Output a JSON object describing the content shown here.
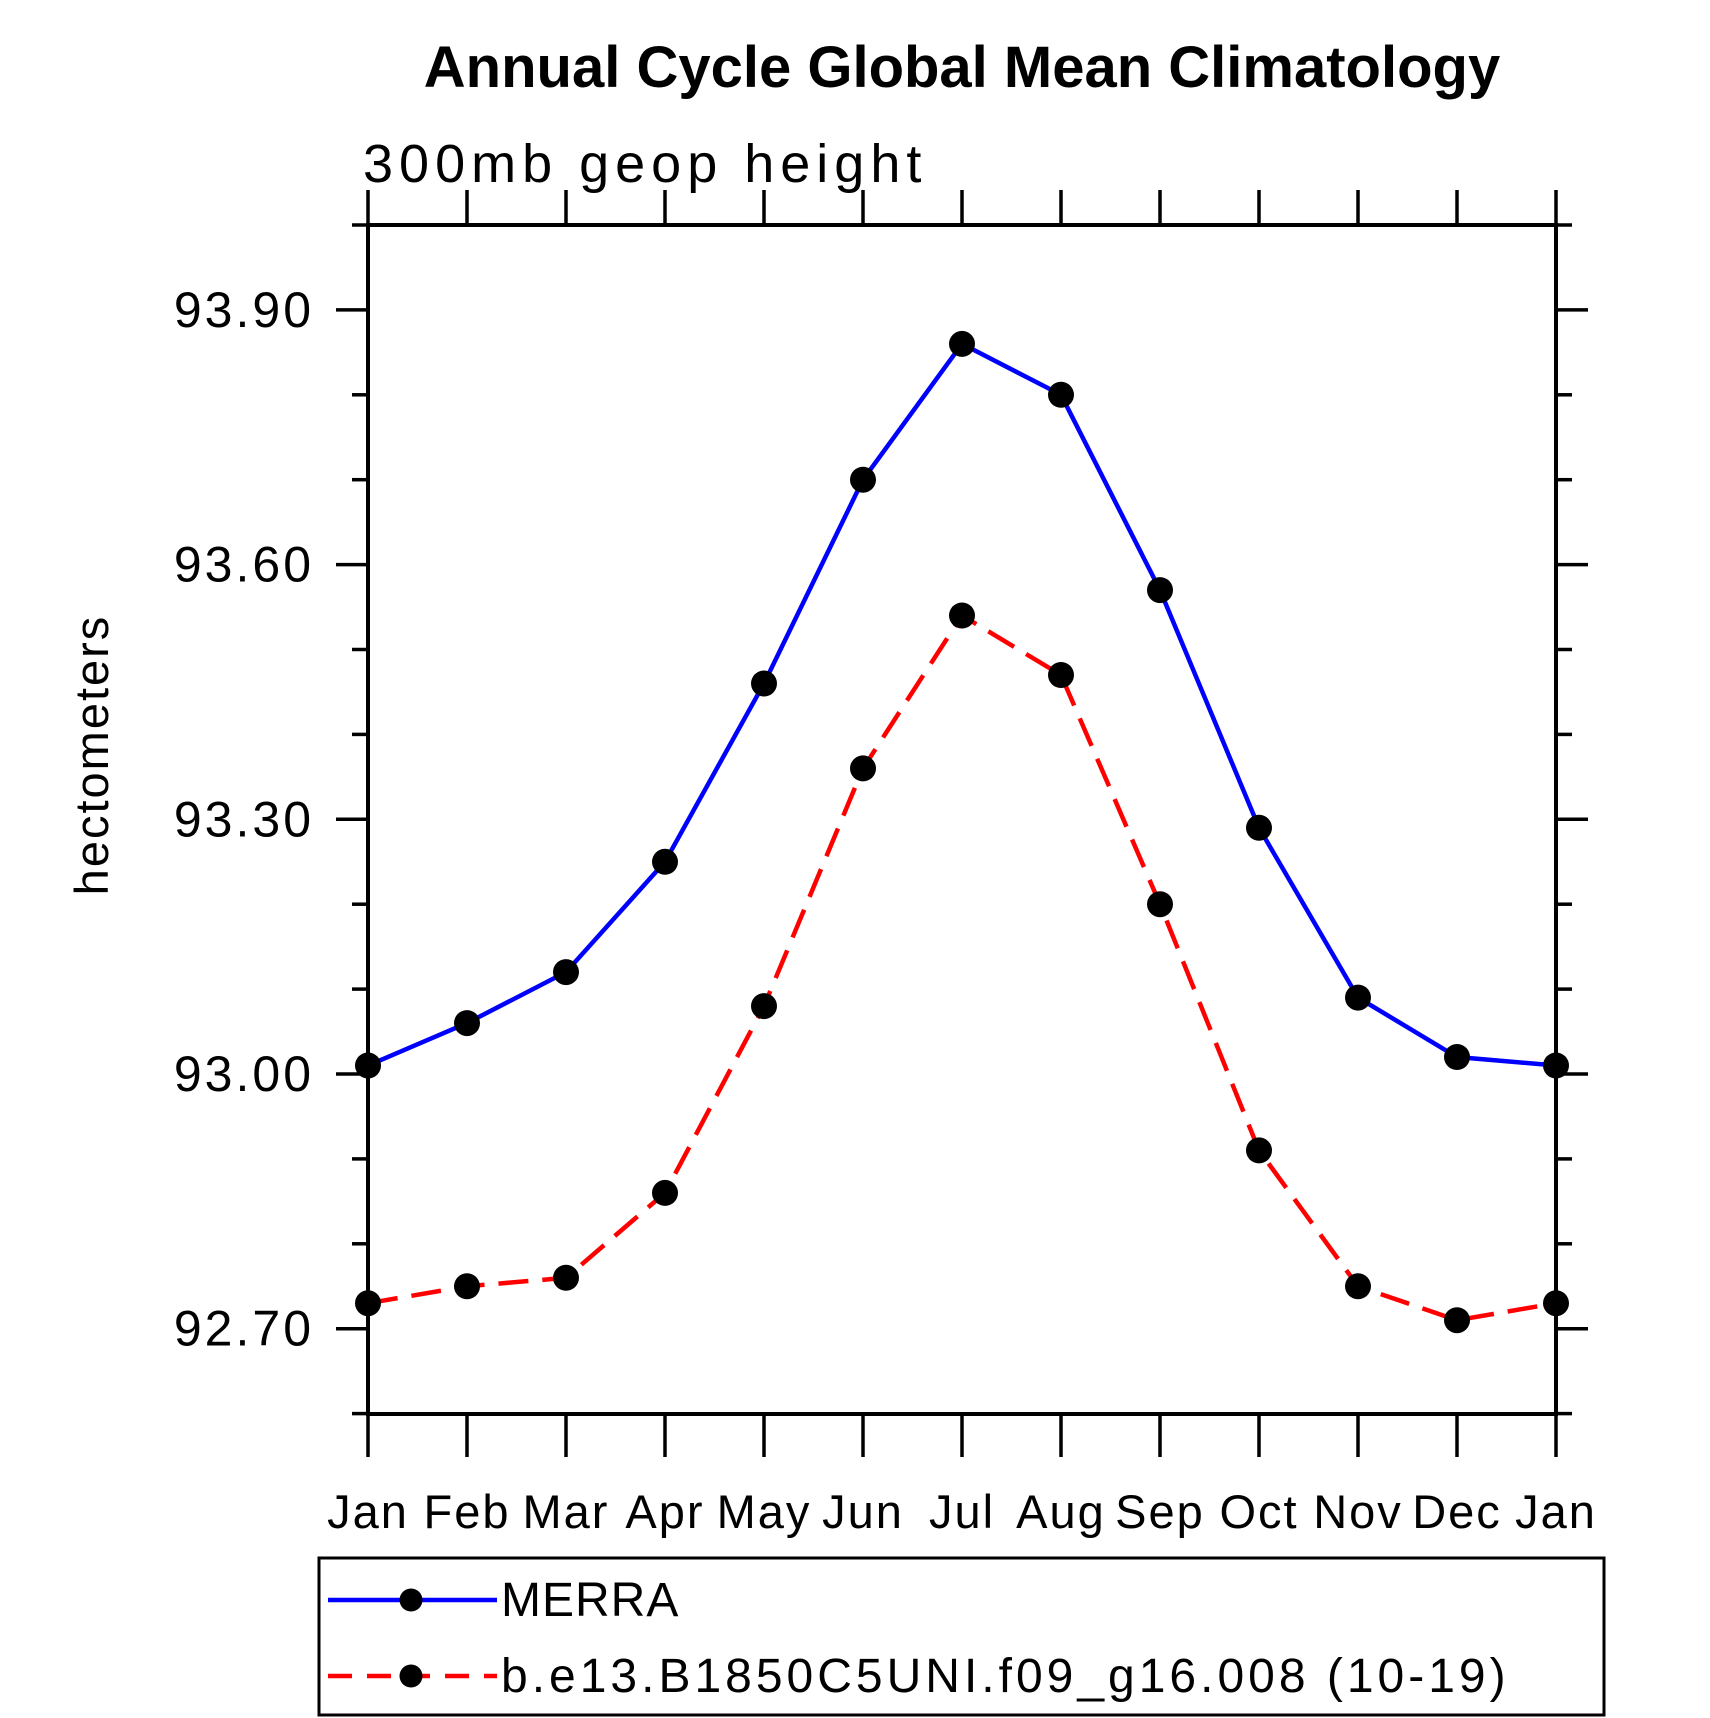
{
  "page": {
    "background": "#ffffff"
  },
  "title": "Annual Cycle Global Mean Climatology",
  "subtitle": "300mb geop height",
  "chart_data": {
    "type": "line",
    "title": "Annual Cycle Global Mean Climatology",
    "subtitle": "300mb geop height",
    "ylabel": "hectometers",
    "xlabel": "",
    "categories": [
      "Jan",
      "Feb",
      "Mar",
      "Apr",
      "May",
      "Jun",
      "Jul",
      "Aug",
      "Sep",
      "Oct",
      "Nov",
      "Dec",
      "Jan"
    ],
    "series": [
      {
        "name": "MERRA",
        "color": "#0000ff",
        "line_style": "solid",
        "marker": "filled-circle",
        "marker_color": "#000000",
        "values": [
          93.01,
          93.06,
          93.12,
          93.25,
          93.46,
          93.7,
          93.86,
          93.8,
          93.57,
          93.29,
          93.09,
          93.02,
          93.01
        ]
      },
      {
        "name": "b.e13.B1850C5UNI.f09_g16.008 (10-19)",
        "color": "#ff0000",
        "line_style": "dashed",
        "marker": "filled-circle",
        "marker_color": "#000000",
        "values": [
          92.73,
          92.75,
          92.76,
          92.86,
          93.08,
          93.36,
          93.54,
          93.47,
          93.2,
          92.91,
          92.75,
          92.71,
          92.73
        ]
      }
    ],
    "ylim": [
      92.6,
      94.0
    ],
    "ytick_major": [
      92.7,
      93.0,
      93.3,
      93.6,
      93.9
    ],
    "ytick_labels": [
      "92.70",
      "93.00",
      "93.30",
      "93.60",
      "93.90"
    ],
    "ytick_minor_step": 0.1,
    "grid": false,
    "legend_position": "bottom-left-box",
    "axis_color": "#000000",
    "text_color": "#000000",
    "background_color": "#ffffff"
  }
}
